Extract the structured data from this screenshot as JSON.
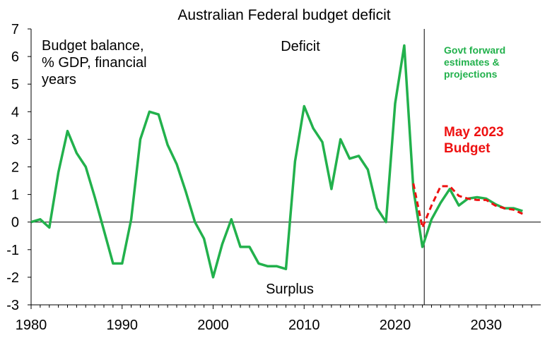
{
  "chart_data": {
    "type": "line",
    "title": "Australian Federal budget deficit",
    "xlim": [
      1980,
      2036
    ],
    "ylim": [
      -3,
      7
    ],
    "x_ticks": [
      1980,
      1990,
      2000,
      2010,
      2020,
      2030
    ],
    "y_ticks": [
      -3,
      -2,
      -1,
      0,
      1,
      2,
      3,
      4,
      5,
      6,
      7
    ],
    "annotations": {
      "ylabel_lines": [
        "Budget balance,",
        "% GDP, financial",
        "years"
      ],
      "deficit": "Deficit",
      "surplus": "Surplus",
      "forecast_lines": [
        "Govt forward",
        "estimates &",
        "projections"
      ],
      "budget_lines": [
        "May 2023",
        "Budget"
      ]
    },
    "forecast_divider_x": 2023.2,
    "colors": {
      "actual": "#22b14c",
      "budget": "#ee1111",
      "axis": "#000000"
    },
    "series": [
      {
        "style": "solid",
        "x": [
          1980,
          1981,
          1982,
          1983,
          1984,
          1985,
          1986,
          1987,
          1988,
          1989,
          1990,
          1991,
          1992,
          1993,
          1994,
          1995,
          1996,
          1997,
          1998,
          1999,
          2000,
          2001,
          2002,
          2003,
          2004,
          2005,
          2006,
          2007,
          2008,
          2009,
          2010,
          2011,
          2012,
          2013,
          2014,
          2015,
          2016,
          2017,
          2018,
          2019,
          2020,
          2021,
          2022,
          2023,
          2024,
          2025,
          2026,
          2027,
          2028,
          2029,
          2030,
          2031,
          2032,
          2033,
          2034
        ],
        "values": [
          0,
          0.1,
          -0.2,
          1.8,
          3.3,
          2.5,
          2.0,
          0.9,
          -0.3,
          -1.5,
          -1.5,
          0.1,
          3.0,
          4.0,
          3.9,
          2.8,
          2.1,
          1.1,
          0.0,
          -0.6,
          -2.0,
          -0.8,
          0.1,
          -0.9,
          -0.9,
          -1.5,
          -1.6,
          -1.6,
          -1.7,
          2.2,
          4.2,
          3.4,
          2.9,
          1.2,
          3.0,
          2.3,
          2.4,
          1.9,
          0.5,
          0.0,
          4.3,
          6.4,
          1.2,
          -0.9,
          0.1,
          0.7,
          1.2,
          0.6,
          0.85,
          0.9,
          0.85,
          0.65,
          0.5,
          0.5,
          0.4
        ]
      },
      {
        "style": "dashed",
        "x": [
          2022,
          2023,
          2024,
          2025,
          2026,
          2027,
          2028,
          2029,
          2030,
          2031,
          2032,
          2033,
          2034
        ],
        "values": [
          1.4,
          -0.2,
          0.6,
          1.3,
          1.3,
          0.95,
          0.85,
          0.8,
          0.8,
          0.6,
          0.5,
          0.45,
          0.3
        ]
      }
    ]
  }
}
